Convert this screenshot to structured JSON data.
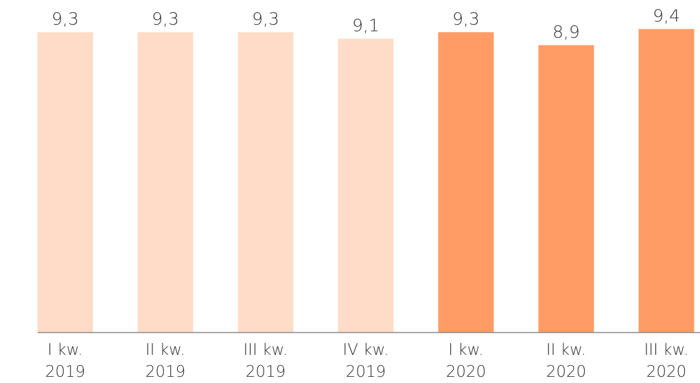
{
  "chart_data": {
    "type": "bar",
    "categories": [
      "I kw. 2019",
      "II kw. 2019",
      "III kw. 2019",
      "IV kw. 2019",
      "I kw. 2020",
      "II kw. 2020",
      "III kw. 2020"
    ],
    "values": [
      9.3,
      9.3,
      9.3,
      9.1,
      9.3,
      8.9,
      9.4
    ],
    "value_labels": [
      "9,3",
      "9,3",
      "9,3",
      "9,1",
      "9,3",
      "8,9",
      "9,4"
    ],
    "colors": [
      "#ffdcc8",
      "#ffdcc8",
      "#ffdcc8",
      "#ffdcc8",
      "#ff9c65",
      "#ff9c65",
      "#ff9c65"
    ],
    "ylim": [
      0,
      10.3
    ]
  }
}
